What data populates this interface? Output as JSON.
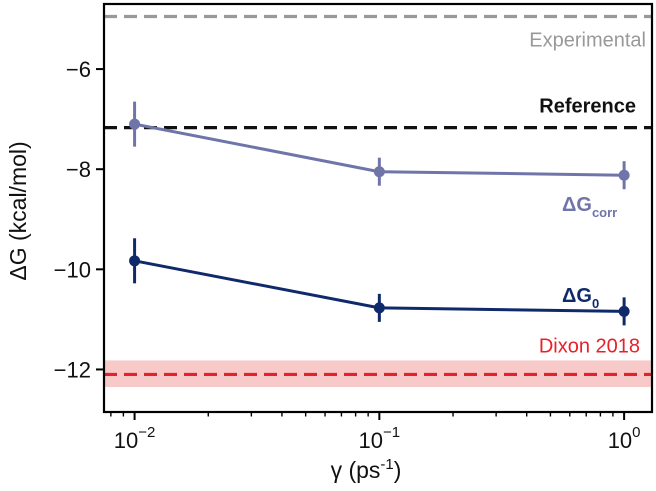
{
  "chart_data": {
    "type": "line",
    "title": "",
    "xlabel": "γ (ps",
    "xlabel_sup": "-1",
    "xlabel_close": ")",
    "ylabel": "ΔG (kcal/mol)",
    "x_scale": "log",
    "xlim": [
      0.0075,
      1.3
    ],
    "ylim": [
      -12.85,
      -4.7
    ],
    "x_ticks": [
      {
        "value": 0.01,
        "base": "10",
        "exp": "−2"
      },
      {
        "value": 0.1,
        "base": "10",
        "exp": "−1"
      },
      {
        "value": 1,
        "base": "10",
        "exp": "0"
      }
    ],
    "y_ticks": [
      {
        "value": -6,
        "label": "−6"
      },
      {
        "value": -8,
        "label": "−8"
      },
      {
        "value": -10,
        "label": "−10"
      },
      {
        "value": -12,
        "label": "−12"
      }
    ],
    "grid": false,
    "x": [
      0.01,
      0.1,
      1
    ],
    "series": [
      {
        "name_main": "ΔG",
        "name_sub": "corr",
        "color": "#7075a9",
        "values": [
          -7.1,
          -8.05,
          -8.12
        ],
        "errors": [
          0.45,
          0.28,
          0.28
        ]
      },
      {
        "name_main": "ΔG",
        "name_sub": "0",
        "color": "#0f2a6b",
        "values": [
          -9.83,
          -10.77,
          -10.84
        ],
        "errors": [
          0.45,
          0.28,
          0.28
        ]
      }
    ],
    "reference_lines": [
      {
        "name": "Experimental",
        "y": -4.95,
        "color": "#999999",
        "bold": false
      },
      {
        "name": "Reference",
        "y": -7.17,
        "color": "#111111",
        "bold": true
      },
      {
        "name": "Dixon 2018",
        "y": -12.1,
        "color": "#e8202a",
        "bold": false,
        "band": [
          -12.35,
          -11.82
        ],
        "band_color": "#f7c9c9"
      }
    ]
  }
}
